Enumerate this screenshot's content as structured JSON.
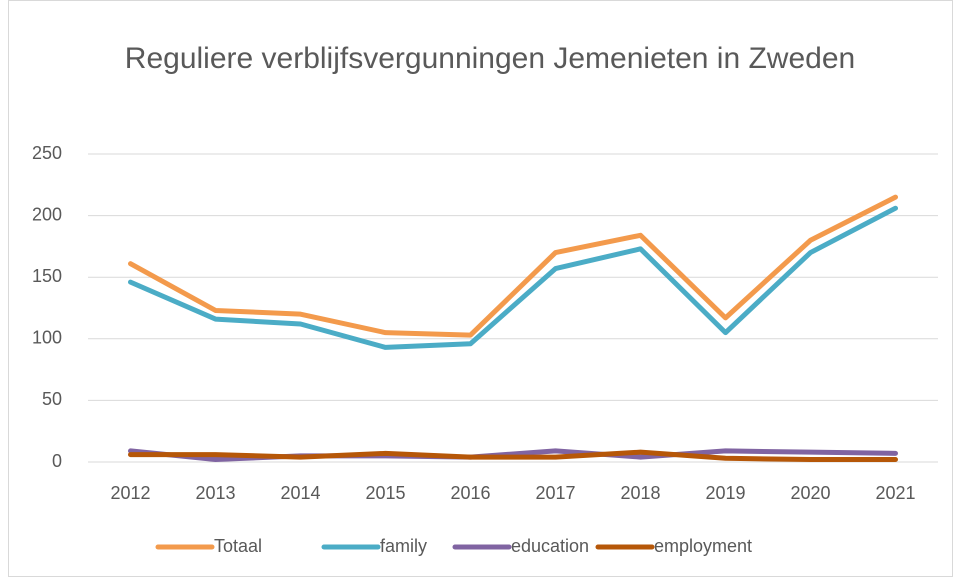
{
  "chart_data": {
    "type": "line",
    "title": "Reguliere verblijfsvergunningen Jemenieten in Zweden",
    "categories": [
      "2012",
      "2013",
      "2014",
      "2015",
      "2016",
      "2017",
      "2018",
      "2019",
      "2020",
      "2021"
    ],
    "series": [
      {
        "name": "Totaal",
        "color": "#f39a4c",
        "values": [
          161,
          123,
          120,
          105,
          103,
          170,
          184,
          117,
          180,
          215
        ]
      },
      {
        "name": "family",
        "color": "#4bacc6",
        "values": [
          146,
          116,
          112,
          93,
          96,
          157,
          173,
          105,
          170,
          206
        ]
      },
      {
        "name": "education",
        "color": "#8064a2",
        "values": [
          9,
          2,
          5,
          5,
          4,
          9,
          4,
          9,
          8,
          7
        ]
      },
      {
        "name": "employment",
        "color": "#b65708",
        "values": [
          6,
          6,
          4,
          7,
          4,
          4,
          8,
          3,
          2,
          2
        ]
      }
    ],
    "ylim": [
      0,
      250
    ],
    "yticks": [
      0,
      50,
      100,
      150,
      200,
      250
    ],
    "grid": true,
    "legend": "bottom"
  }
}
